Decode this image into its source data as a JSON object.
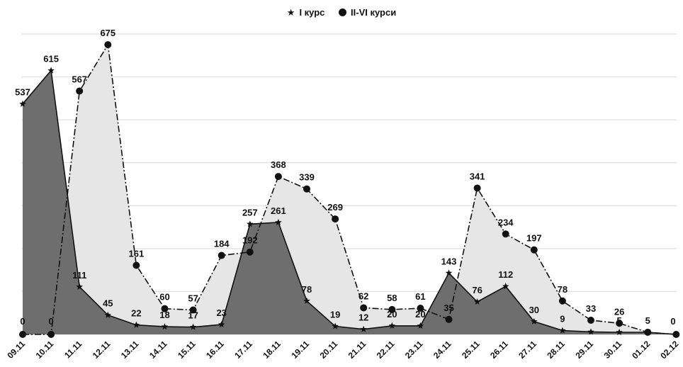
{
  "chart_data": {
    "type": "area",
    "title": "",
    "xlabel": "",
    "ylabel": "",
    "ylim": [
      0,
      700
    ],
    "grid": true,
    "legend_position": "top-center",
    "categories": [
      "09.11",
      "10.11",
      "11.11",
      "12.11",
      "13.11",
      "14.11",
      "15.11",
      "16.11",
      "17.11",
      "18.11",
      "19.11",
      "20.11",
      "21.11",
      "22.11",
      "23.11",
      "24.11",
      "25.11",
      "26.11",
      "27.11",
      "28.11",
      "29.11",
      "30.11",
      "01.12",
      "02.12"
    ],
    "series": [
      {
        "name": "I курс",
        "marker": "star",
        "color": "#6e6e6e",
        "values": [
          537,
          615,
          111,
          45,
          22,
          18,
          17,
          23,
          257,
          261,
          78,
          19,
          12,
          20,
          20,
          143,
          76,
          112,
          30,
          9,
          6,
          5,
          5,
          0
        ],
        "labels": [
          "537",
          "615",
          "111",
          "45",
          "22",
          "18",
          "17",
          "23",
          "257",
          "261",
          "78",
          "19",
          "12",
          "20",
          "20",
          "143",
          "76",
          "112",
          "30",
          "9",
          "6",
          "5",
          "5",
          "0"
        ]
      },
      {
        "name": "II-VI курси",
        "marker": "circle",
        "color": "#e6e6e6",
        "values": [
          0,
          0,
          567,
          675,
          161,
          60,
          57,
          184,
          192,
          368,
          339,
          269,
          62,
          58,
          61,
          35,
          341,
          234,
          197,
          78,
          33,
          26,
          5,
          0
        ],
        "labels": [
          "0",
          "0",
          "567",
          "675",
          "161",
          "60",
          "57",
          "184",
          "192",
          "368",
          "339",
          "269",
          "62",
          "58",
          "61",
          "35",
          "341",
          "234",
          "197",
          "78",
          "33",
          "26",
          "",
          ""
        ]
      }
    ]
  }
}
